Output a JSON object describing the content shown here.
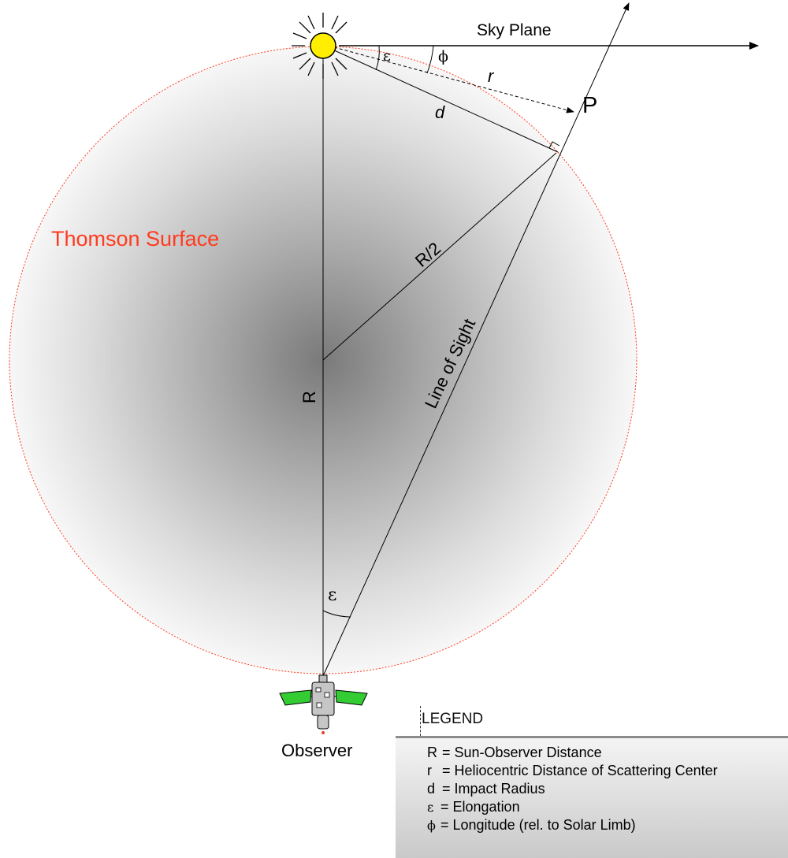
{
  "labels": {
    "sky_plane": "Sky Plane",
    "thomson_surface": "Thomson Surface",
    "r_half": "R/2",
    "line_of_sight": "Line of Sight",
    "big_r": "R",
    "small_r": "r",
    "d": "d",
    "p": "P",
    "epsilon_top": "ε",
    "phi": "ϕ",
    "epsilon_bottom": "ε",
    "observer": "Observer"
  },
  "colors": {
    "thomson_surface": "#ff3b1f",
    "sun": "#ffee00",
    "solar_panel": "#33cc33"
  },
  "icons": {
    "sun": "sun-icon",
    "observer": "satellite-icon"
  },
  "legend": {
    "title": "LEGEND",
    "items": [
      {
        "symbol": "R",
        "text": " = Sun-Observer Distance"
      },
      {
        "symbol": "r",
        "text": " = Heliocentric Distance of Scattering Center"
      },
      {
        "symbol": "d",
        "text": " = Impact Radius"
      },
      {
        "symbol": "ε",
        "text": " = Elongation"
      },
      {
        "symbol": "ϕ",
        "text": " = Longitude (rel. to Solar Limb)"
      }
    ]
  }
}
